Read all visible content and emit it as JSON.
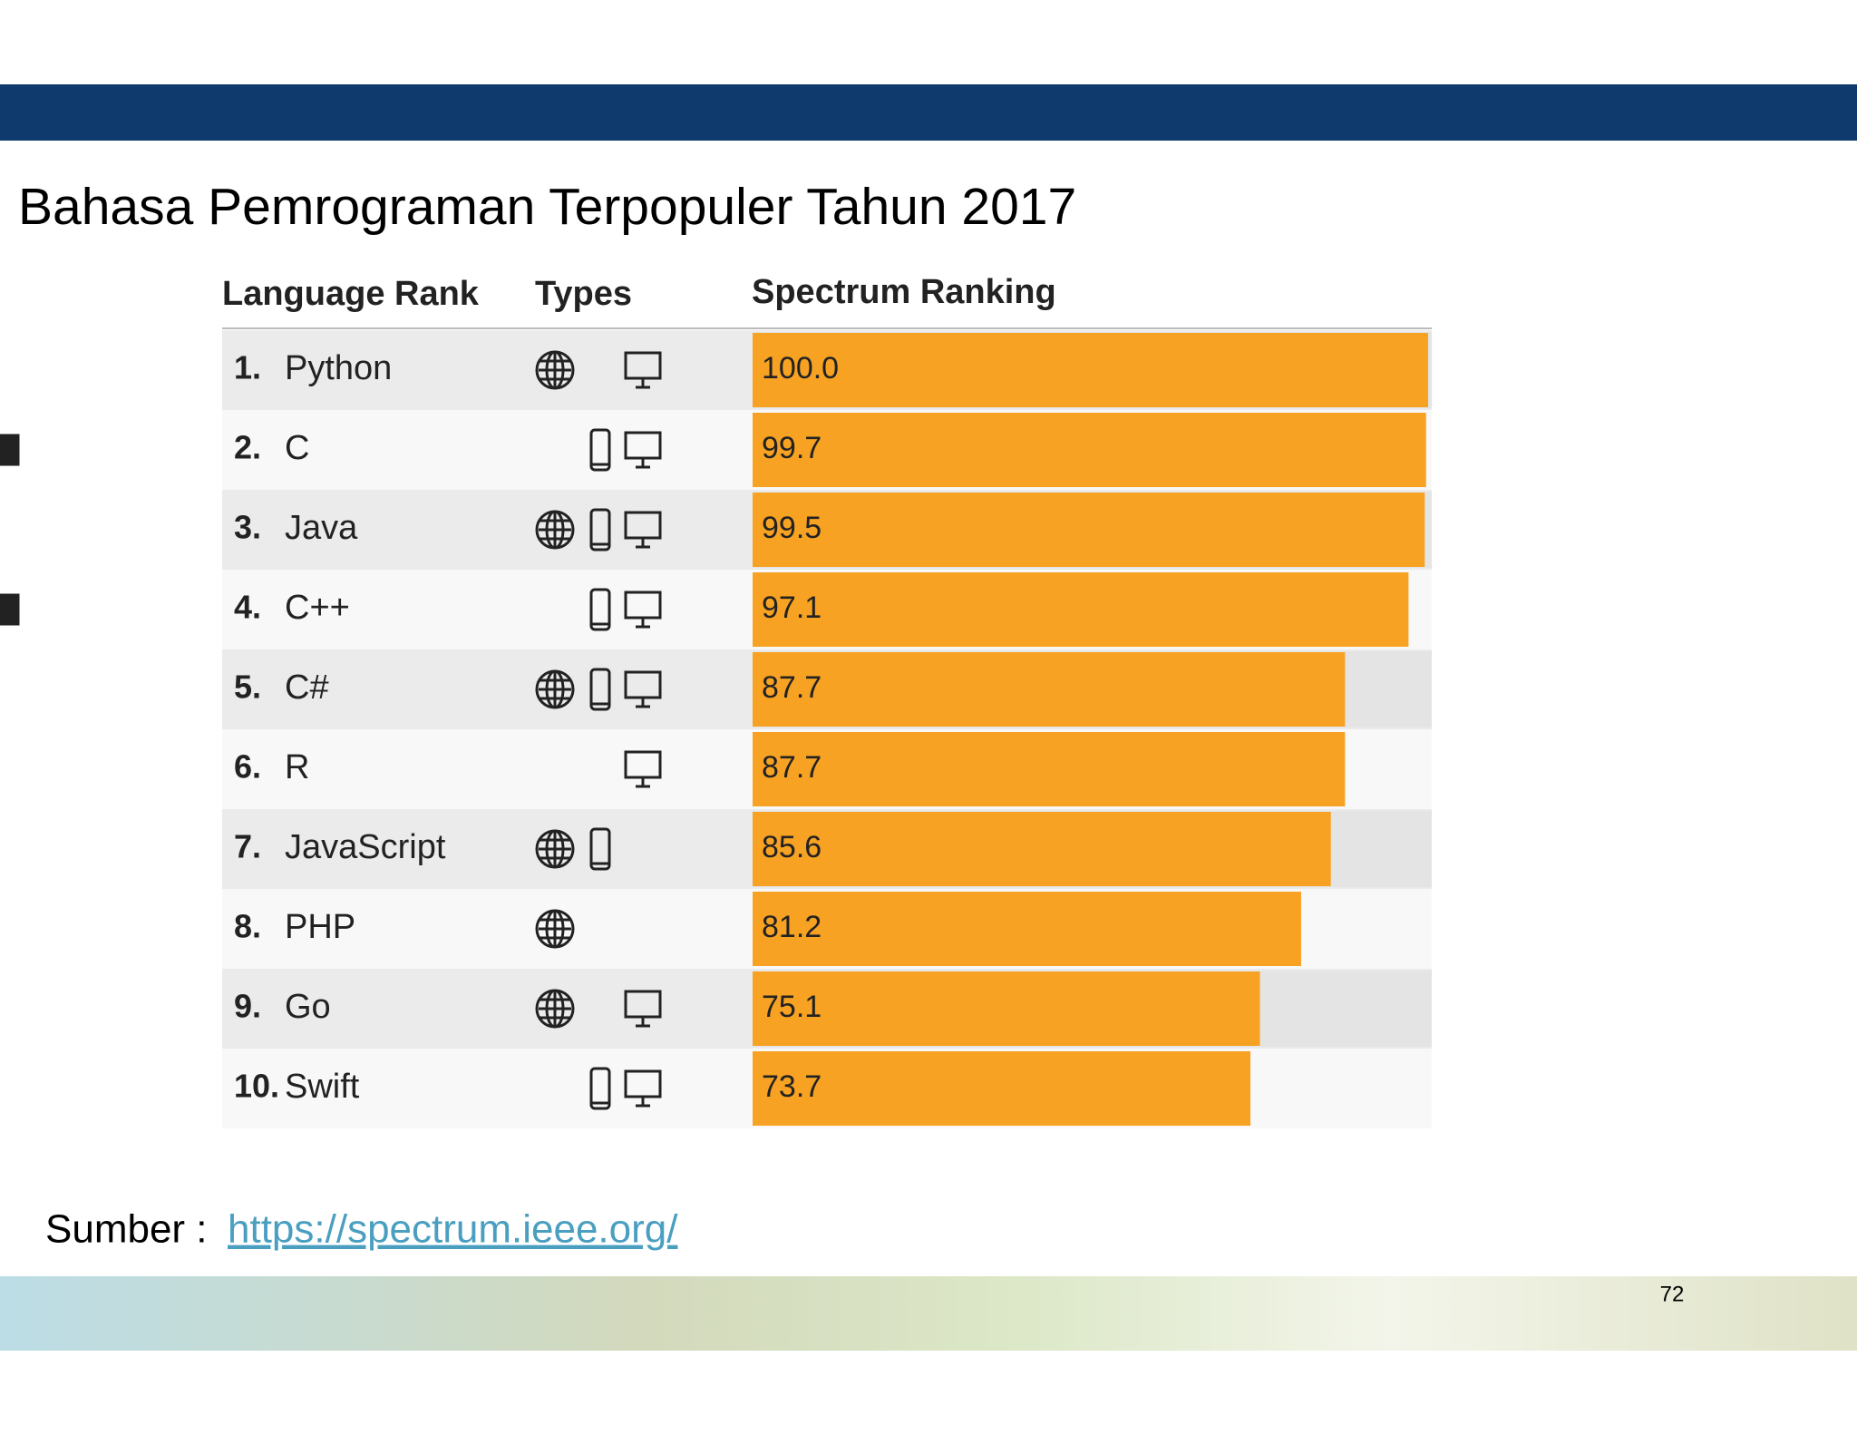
{
  "chart_data": {
    "type": "bar",
    "title": "Bahasa Pemrograman Terpopuler Tahun 2017",
    "headers": [
      "Language Rank",
      "Types",
      "Spectrum Ranking"
    ],
    "ranks": [
      "1.",
      "2.",
      "3.",
      "4.",
      "5.",
      "6.",
      "7.",
      "8.",
      "9.",
      "10."
    ],
    "categories": [
      "Python",
      "C",
      "Java",
      "C++",
      "C#",
      "R",
      "JavaScript",
      "PHP",
      "Go",
      "Swift"
    ],
    "values": [
      100.0,
      99.7,
      99.5,
      97.1,
      87.7,
      87.7,
      85.6,
      81.2,
      75.1,
      73.7
    ],
    "value_labels": [
      "100.0",
      "99.7",
      "99.5",
      "97.1",
      "87.7",
      "87.7",
      "85.6",
      "81.2",
      "75.1",
      "73.7"
    ],
    "color": "#f7a222",
    "xlim": [
      0,
      100
    ]
  },
  "source": {
    "label": "Sumber :",
    "link": "https://spectrum.ieee.org/"
  },
  "page_number": "72"
}
